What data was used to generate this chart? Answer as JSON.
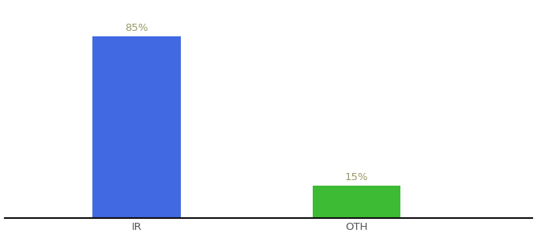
{
  "categories": [
    "IR",
    "OTH"
  ],
  "values": [
    85,
    15
  ],
  "bar_colors": [
    "#4169e1",
    "#3dbb35"
  ],
  "label_texts": [
    "85%",
    "15%"
  ],
  "label_color": "#999966",
  "ylim": [
    0,
    100
  ],
  "background_color": "#ffffff",
  "bar_width": 0.4,
  "x_positions": [
    1,
    2
  ],
  "xlim": [
    0.4,
    2.8
  ],
  "tick_label_color": "#555555",
  "axis_line_color": "#111111",
  "label_fontsize": 9.5,
  "tick_fontsize": 9.5
}
